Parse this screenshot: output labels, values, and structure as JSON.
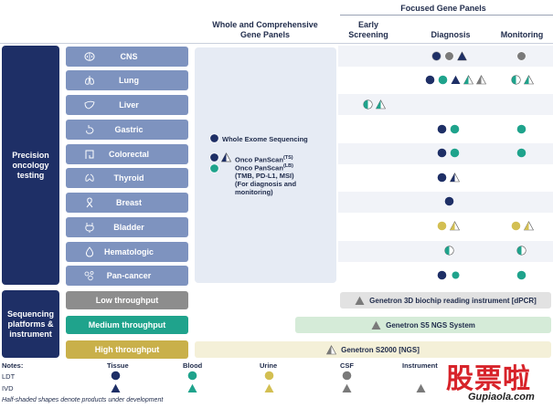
{
  "headers": {
    "focused": "Focused Gene Panels",
    "whole": "Whole and Comprehensive Gene Panels",
    "early": "Early Screening",
    "diagnosis": "Diagnosis",
    "monitoring": "Monitoring"
  },
  "left": {
    "precision": "Precision oncology testing",
    "sequencing": "Sequencing platforms & instrument"
  },
  "cancers": [
    {
      "label": "CNS",
      "icon": "brain-icon"
    },
    {
      "label": "Lung",
      "icon": "lungs-icon"
    },
    {
      "label": "Liver",
      "icon": "liver-icon"
    },
    {
      "label": "Gastric",
      "icon": "stomach-icon"
    },
    {
      "label": "Colorectal",
      "icon": "colon-icon"
    },
    {
      "label": "Thyroid",
      "icon": "thyroid-icon"
    },
    {
      "label": "Breast",
      "icon": "ribbon-icon"
    },
    {
      "label": "Bladder",
      "icon": "bladder-icon"
    },
    {
      "label": "Hematologic",
      "icon": "droplet-icon"
    },
    {
      "label": "Pan-cancer",
      "icon": "cells-icon"
    }
  ],
  "center": {
    "wes": "Whole Exome Sequencing",
    "onco1": "Onco PanScan",
    "onco1_sup": "(TS)",
    "onco2": "Onco PanScan",
    "onco2_sup": "(LB)",
    "onco_detail": "(TMB, PD-L1, MSI)",
    "onco_note1": "(For diagnosis and",
    "onco_note2": "monitoring)"
  },
  "throughput": {
    "low": "Low throughput",
    "medium": "Medium throughput",
    "high": "High throughput"
  },
  "instruments": {
    "low": "Genetron 3D biochip reading instrument [dPCR]",
    "medium": "Genetron S5 NGS System",
    "high": "Genetron S2000 [NGS]"
  },
  "notes": {
    "title": "Notes:",
    "ldt": "LDT",
    "ivd": "IVD",
    "tissue": "Tissue",
    "blood": "Blood",
    "urine": "Urine",
    "csf": "CSF",
    "instrument": "Instrument",
    "footnote": "Half-shaded shapes denote products under development"
  },
  "watermark": {
    "chinese": "股票啦",
    "url": "Gupiaola.com"
  },
  "colors": {
    "navy": "#1e2f66",
    "cancer_blue": "#7e93bf",
    "teal": "#1fa38c",
    "gold": "#c9b04a",
    "gray_bar": "#8d8d8d",
    "tissue": "#1e2f66",
    "blood": "#1fa38c",
    "urine": "#d3bf52",
    "csf": "#7a7a7a"
  }
}
